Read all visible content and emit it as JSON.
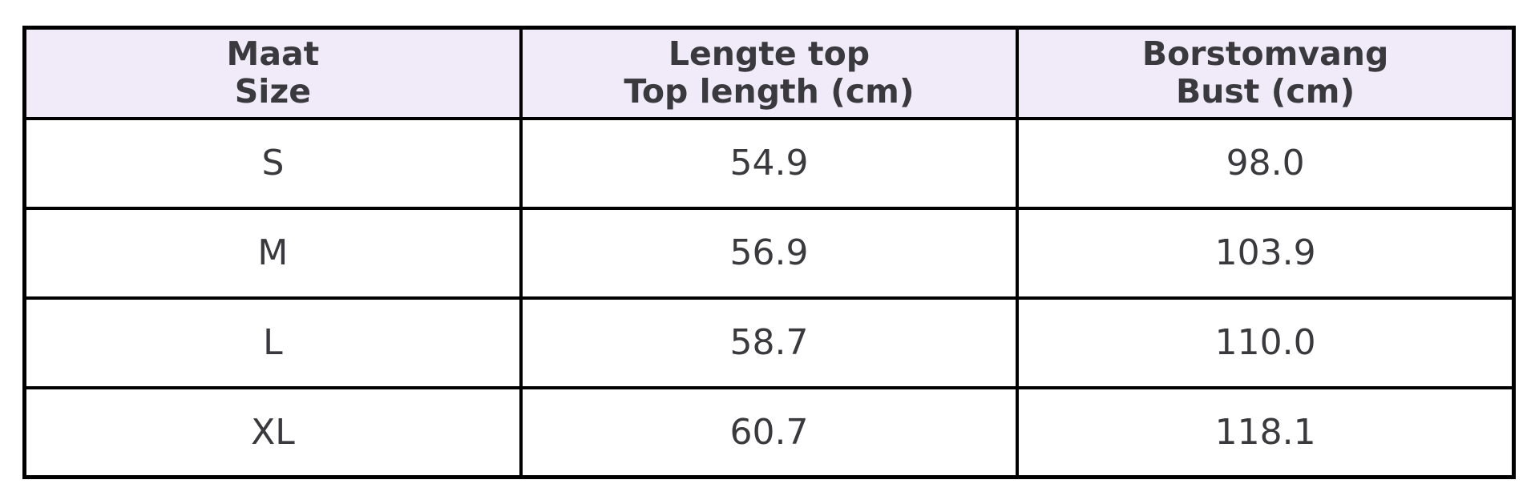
{
  "table": {
    "headers": [
      {
        "line1": "Maat",
        "line2": "Size"
      },
      {
        "line1": "Lengte top",
        "line2": "Top length (cm)"
      },
      {
        "line1": "Borstomvang",
        "line2": "Bust (cm)"
      }
    ],
    "rows": [
      {
        "size": "S",
        "top_length_cm": "54.9",
        "bust_cm": "98.0"
      },
      {
        "size": "M",
        "top_length_cm": "56.9",
        "bust_cm": "103.9"
      },
      {
        "size": "L",
        "top_length_cm": "58.7",
        "bust_cm": "110.0"
      },
      {
        "size": "XL",
        "top_length_cm": "60.7",
        "bust_cm": "118.1"
      }
    ],
    "colors": {
      "header_bg": "#f0eaf9",
      "border": "#000000",
      "text": "#3a3a3e"
    }
  },
  "chart_data": {
    "type": "table",
    "columns": [
      "Maat / Size",
      "Lengte top / Top length (cm)",
      "Borstomvang / Bust (cm)"
    ],
    "rows": [
      [
        "S",
        54.9,
        98.0
      ],
      [
        "M",
        56.9,
        103.9
      ],
      [
        "L",
        58.7,
        110.0
      ],
      [
        "XL",
        60.7,
        118.1
      ]
    ]
  }
}
